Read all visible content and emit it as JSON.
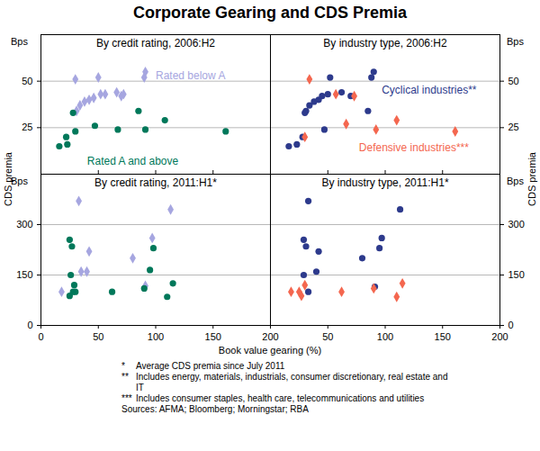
{
  "title": "Corporate Gearing and CDS Premia",
  "y_label": "CDS premia",
  "y_unit": "Bps",
  "x_label": "Book value gearing (%)",
  "notes": [
    {
      "marker": "*",
      "text": "Average CDS premia since July 2011"
    },
    {
      "marker": "**",
      "text": "Includes energy, materials, industrials, consumer discretionary, real estate and IT"
    },
    {
      "marker": "***",
      "text": "Includes consumer staples, health care, telecommunications and utilities"
    }
  ],
  "sources": "Sources: AFMA; Bloomberg; Morningstar; RBA",
  "chart_data": [
    {
      "type": "scatter",
      "title": "By credit rating, 2006:H2",
      "xlim": [
        0,
        200
      ],
      "xticks": [
        0,
        50,
        100,
        150,
        200
      ],
      "ylim": [
        0,
        75
      ],
      "yticks": [
        25,
        50
      ],
      "grid": true,
      "tick_labels": "y",
      "series": [
        {
          "name": "Rated below A",
          "color": "#a6a6e0",
          "marker": "diamond",
          "x": [
            30,
            50,
            90,
            91,
            31,
            34,
            38,
            42,
            46,
            52,
            56,
            66,
            70,
            72
          ],
          "values": [
            51,
            52,
            52,
            55,
            34,
            37,
            39,
            40,
            41,
            43,
            43,
            44,
            42,
            43
          ]
        },
        {
          "name": "Rated A and above",
          "color": "#00785a",
          "marker": "circle",
          "x": [
            16,
            22,
            23,
            28,
            30,
            47,
            67,
            85,
            91,
            108,
            161
          ],
          "values": [
            15,
            20,
            16,
            33,
            23,
            26,
            24,
            34,
            24,
            29,
            23
          ]
        }
      ]
    },
    {
      "type": "scatter",
      "title": "By industry type, 2006:H2",
      "xlim": [
        0,
        200
      ],
      "xticks": [
        50,
        100,
        150,
        200
      ],
      "ylim": [
        0,
        75
      ],
      "yticks": [
        25,
        50
      ],
      "grid": true,
      "tick_labels": "y",
      "series": [
        {
          "name": "Cyclical industries**",
          "color": "#2d3a8c",
          "marker": "circle",
          "x": [
            16,
            23,
            28,
            30,
            31,
            34,
            38,
            42,
            45,
            47,
            50,
            52,
            62,
            70,
            85,
            88,
            90
          ],
          "values": [
            15,
            16,
            20,
            33,
            34,
            37,
            39,
            40,
            42,
            24,
            43,
            52,
            44,
            42,
            34,
            52,
            55
          ]
        },
        {
          "name": "Defensive industries***",
          "color": "#f4674f",
          "marker": "diamond",
          "x": [
            30,
            34,
            57,
            66,
            73,
            92,
            110,
            161
          ],
          "values": [
            20,
            51,
            43,
            27,
            42,
            24,
            29,
            23
          ]
        }
      ]
    },
    {
      "type": "scatter",
      "title": "By credit rating, 2011:H1*",
      "xlim": [
        0,
        200
      ],
      "xticks": [
        0,
        50,
        100,
        150,
        200
      ],
      "ylim": [
        0,
        450
      ],
      "yticks": [
        0,
        150,
        300
      ],
      "grid": true,
      "series": [
        {
          "color": "#a6a6e0",
          "marker": "diamond",
          "x": [
            33,
            18,
            40,
            42,
            35,
            80,
            97,
            113,
            91
          ],
          "values": [
            370,
            100,
            160,
            220,
            160,
            200,
            260,
            345,
            118
          ]
        },
        {
          "color": "#00785a",
          "marker": "circle",
          "x": [
            25,
            27,
            26,
            29,
            30,
            25,
            28,
            62,
            90,
            95,
            98,
            110,
            115
          ],
          "values": [
            255,
            235,
            150,
            120,
            100,
            88,
            100,
            100,
            110,
            165,
            230,
            85,
            125
          ]
        }
      ]
    },
    {
      "type": "scatter",
      "title": "By industry type, 2011:H1*",
      "xlim": [
        0,
        200
      ],
      "xticks": [
        50,
        100,
        150,
        200
      ],
      "ylim": [
        0,
        450
      ],
      "yticks": [
        0,
        150,
        300
      ],
      "grid": true,
      "series": [
        {
          "color": "#2d3a8c",
          "marker": "circle",
          "x": [
            33,
            29,
            31,
            29,
            33,
            40,
            42,
            80,
            95,
            97,
            113,
            91
          ],
          "values": [
            370,
            255,
            235,
            150,
            100,
            160,
            220,
            200,
            230,
            260,
            345,
            115
          ]
        },
        {
          "color": "#f4674f",
          "marker": "diamond",
          "x": [
            18,
            27,
            30,
            62,
            90,
            110,
            115,
            25
          ],
          "values": [
            100,
            88,
            120,
            100,
            110,
            85,
            125,
            100
          ]
        }
      ]
    }
  ]
}
